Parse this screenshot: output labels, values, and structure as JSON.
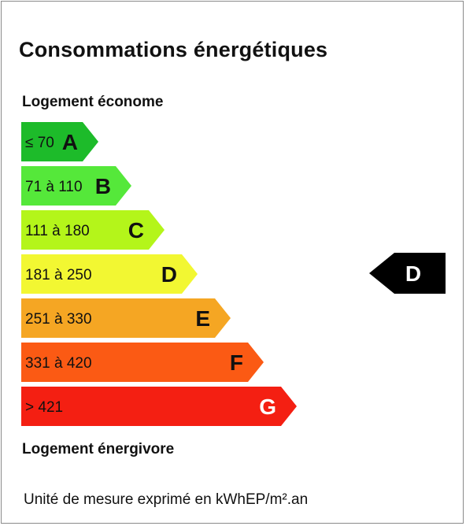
{
  "title": "Consommations énergétiques",
  "label_top": "Logement économe",
  "label_bottom": "Logement énergivore",
  "unit": "Unité de mesure exprimé en kWhEP/m².an",
  "chart_data": {
    "type": "bar",
    "categories": [
      "A",
      "B",
      "C",
      "D",
      "E",
      "F",
      "G"
    ],
    "ranges": [
      "≤ 70",
      "71 à 110",
      "111 à 180",
      "181 à 250",
      "251 à 330",
      "331 à 420",
      "> 421"
    ],
    "colors": [
      "#1dbb2a",
      "#55e83a",
      "#b4f51a",
      "#f2f732",
      "#f5a623",
      "#fb5a14",
      "#f41f12"
    ],
    "current_class": "D",
    "marker_color": "#000000"
  }
}
